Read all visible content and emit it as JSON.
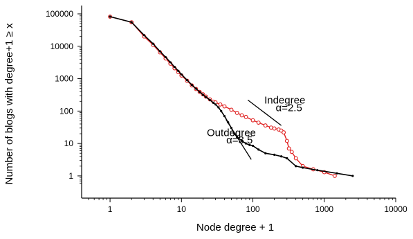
{
  "chart_data": {
    "type": "line",
    "title": "",
    "xlabel": "Node degree + 1",
    "ylabel": "Number of blogs with degree+1 ≥ x",
    "x_scale": "log",
    "y_scale": "log",
    "xlim": [
      0.4,
      10000
    ],
    "ylim": [
      0.5,
      100000
    ],
    "x_ticks": [
      1,
      10,
      100,
      1000,
      10000
    ],
    "x_tick_labels": [
      "1",
      "10",
      "100",
      "1000",
      "10000"
    ],
    "y_ticks": [
      1,
      10,
      100,
      1000,
      10000,
      100000
    ],
    "y_tick_labels": [
      "1",
      "10",
      "100",
      "1000",
      "10000",
      "100000"
    ],
    "grid": false,
    "series": [
      {
        "name": "Indegree",
        "color": "#e02020",
        "marker": "open-circle",
        "points": [
          [
            1,
            82000
          ],
          [
            2,
            55000
          ],
          [
            3,
            20000
          ],
          [
            4,
            11000
          ],
          [
            5,
            6500
          ],
          [
            6,
            4200
          ],
          [
            7,
            2900
          ],
          [
            8,
            2100
          ],
          [
            9,
            1600
          ],
          [
            10,
            1250
          ],
          [
            12,
            860
          ],
          [
            14,
            620
          ],
          [
            16,
            480
          ],
          [
            18,
            390
          ],
          [
            20,
            330
          ],
          [
            22,
            280
          ],
          [
            25,
            230
          ],
          [
            28,
            195
          ],
          [
            30,
            185
          ],
          [
            35,
            160
          ],
          [
            40,
            140
          ],
          [
            50,
            110
          ],
          [
            60,
            88
          ],
          [
            70,
            74
          ],
          [
            80,
            66
          ],
          [
            100,
            52
          ],
          [
            120,
            44
          ],
          [
            150,
            36
          ],
          [
            180,
            31
          ],
          [
            200,
            29
          ],
          [
            230,
            27
          ],
          [
            250,
            25
          ],
          [
            270,
            22
          ],
          [
            300,
            12
          ],
          [
            320,
            7
          ],
          [
            350,
            5.5
          ],
          [
            400,
            3.5
          ],
          [
            500,
            2
          ],
          [
            700,
            1.6
          ],
          [
            1000,
            1.3
          ],
          [
            1400,
            1
          ]
        ]
      },
      {
        "name": "Outdegree",
        "color": "#000000",
        "marker": "small-dot",
        "points": [
          [
            1,
            82000
          ],
          [
            2,
            55000
          ],
          [
            3,
            22000
          ],
          [
            4,
            12000
          ],
          [
            5,
            7000
          ],
          [
            6,
            4600
          ],
          [
            7,
            3200
          ],
          [
            8,
            2300
          ],
          [
            9,
            1750
          ],
          [
            10,
            1350
          ],
          [
            12,
            900
          ],
          [
            14,
            640
          ],
          [
            16,
            490
          ],
          [
            18,
            390
          ],
          [
            20,
            320
          ],
          [
            22,
            270
          ],
          [
            25,
            220
          ],
          [
            28,
            180
          ],
          [
            30,
            160
          ],
          [
            33,
            130
          ],
          [
            36,
            100
          ],
          [
            40,
            70
          ],
          [
            45,
            45
          ],
          [
            50,
            30
          ],
          [
            55,
            20
          ],
          [
            60,
            16
          ],
          [
            70,
            12
          ],
          [
            80,
            10
          ],
          [
            90,
            9
          ],
          [
            100,
            8.5
          ],
          [
            120,
            6.5
          ],
          [
            150,
            5
          ],
          [
            200,
            4.5
          ],
          [
            250,
            4
          ],
          [
            300,
            3.5
          ],
          [
            400,
            2
          ],
          [
            500,
            1.8
          ],
          [
            800,
            1.5
          ],
          [
            1500,
            1.2
          ],
          [
            2500,
            1
          ]
        ]
      }
    ],
    "annotations": [
      {
        "text": "Indegree",
        "x": 280,
        "y": 170
      },
      {
        "text": "α=2.5",
        "x": 320,
        "y": 100
      },
      {
        "text": "Outdegree",
        "x": 50,
        "y": 17
      },
      {
        "text": "α=3.5",
        "x": 65,
        "y": 10
      }
    ],
    "slope_lines": [
      {
        "name": "indegree-slope",
        "x1": 85,
        "y1": 220,
        "x2": 250,
        "y2": 36
      },
      {
        "name": "outdegree-slope",
        "x1": 42,
        "y1": 55,
        "x2": 95,
        "y2": 3.2
      }
    ]
  }
}
